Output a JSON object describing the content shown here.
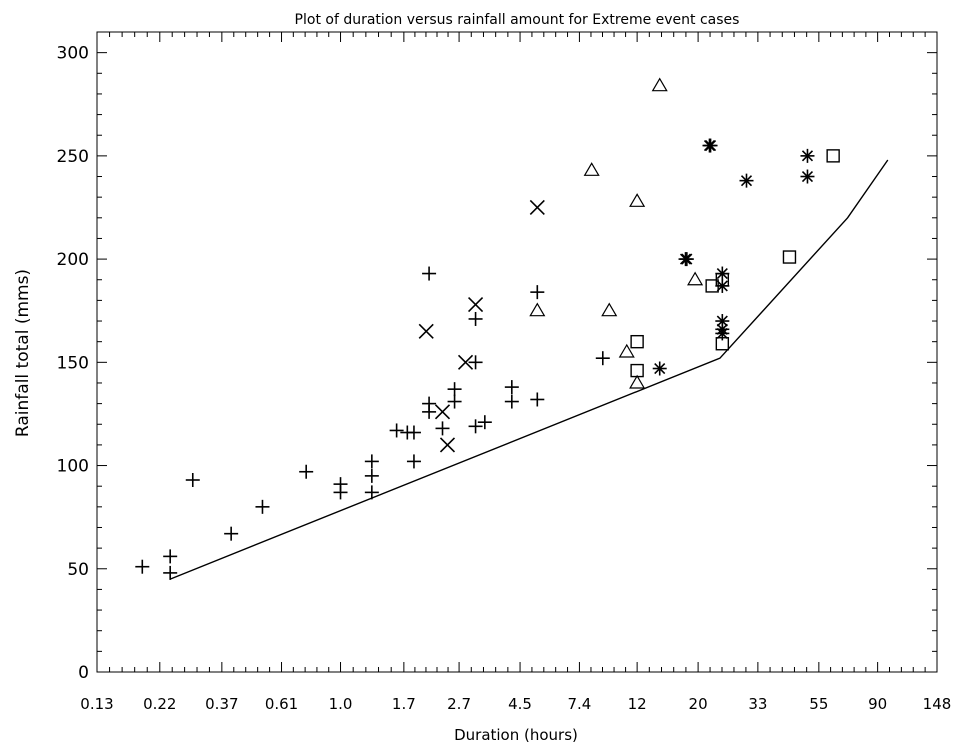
{
  "chart_data": {
    "type": "scatter",
    "title": "Plot of duration versus rainfall amount for Extreme event cases",
    "xlabel": "Duration (hours)",
    "ylabel": "Rainfall total (mms)",
    "x_scale": "log",
    "xlim": [
      0.13,
      148
    ],
    "ylim": [
      0,
      310
    ],
    "x_ticks": [
      0.13,
      0.22,
      0.37,
      0.61,
      1.0,
      1.7,
      2.7,
      4.5,
      7.4,
      12,
      20,
      33,
      55,
      90,
      148
    ],
    "x_tick_labels": [
      "0.13",
      "0.22",
      "0.37",
      "0.61",
      "1.0",
      "1.7",
      "2.7",
      "4.5",
      "7.4",
      "12",
      "20",
      "33",
      "55",
      "90",
      "148"
    ],
    "y_ticks": [
      0,
      50,
      100,
      150,
      200,
      250,
      300
    ],
    "y_tick_labels": [
      "0",
      "50",
      "100",
      "150",
      "200",
      "250",
      "300"
    ],
    "grid": false,
    "series": [
      {
        "marker": "plus",
        "points": [
          [
            0.19,
            51
          ],
          [
            0.24,
            56
          ],
          [
            0.24,
            48
          ],
          [
            0.29,
            93
          ],
          [
            0.4,
            67
          ],
          [
            0.52,
            80
          ],
          [
            0.75,
            97
          ],
          [
            1.0,
            91
          ],
          [
            1.0,
            87
          ],
          [
            1.3,
            102
          ],
          [
            1.3,
            95
          ],
          [
            1.3,
            87
          ],
          [
            1.6,
            117
          ],
          [
            1.75,
            116
          ],
          [
            1.85,
            116
          ],
          [
            1.85,
            102
          ],
          [
            2.1,
            193
          ],
          [
            2.1,
            130
          ],
          [
            2.1,
            126
          ],
          [
            2.35,
            118
          ],
          [
            2.6,
            137
          ],
          [
            2.6,
            131
          ],
          [
            3.1,
            171
          ],
          [
            3.1,
            150
          ],
          [
            3.1,
            119
          ],
          [
            3.35,
            121
          ],
          [
            4.2,
            138
          ],
          [
            4.2,
            131
          ],
          [
            5.2,
            184
          ],
          [
            5.2,
            132
          ],
          [
            9.0,
            152
          ]
        ]
      },
      {
        "marker": "x",
        "points": [
          [
            2.05,
            165
          ],
          [
            2.35,
            126
          ],
          [
            2.45,
            110
          ],
          [
            2.85,
            150
          ],
          [
            3.1,
            178
          ],
          [
            5.2,
            225
          ]
        ]
      },
      {
        "marker": "triangle",
        "points": [
          [
            5.2,
            175
          ],
          [
            8.2,
            243
          ],
          [
            9.5,
            175
          ],
          [
            11.0,
            155
          ],
          [
            12.0,
            228
          ],
          [
            12.0,
            140
          ],
          [
            14.5,
            284
          ],
          [
            19.5,
            190
          ]
        ]
      },
      {
        "marker": "asterisk",
        "points": [
          [
            14.5,
            147
          ],
          [
            18.0,
            200
          ],
          [
            18.2,
            200
          ],
          [
            22.0,
            255
          ],
          [
            22.2,
            255
          ],
          [
            24.5,
            193
          ],
          [
            24.5,
            187
          ],
          [
            24.5,
            170
          ],
          [
            24.5,
            166
          ],
          [
            24.5,
            164
          ],
          [
            30.0,
            238
          ],
          [
            50.0,
            250
          ],
          [
            50.0,
            240
          ]
        ]
      },
      {
        "marker": "square",
        "points": [
          [
            12.0,
            160
          ],
          [
            12.0,
            146
          ],
          [
            22.5,
            187
          ],
          [
            24.5,
            190
          ],
          [
            24.5,
            159
          ],
          [
            43.0,
            201
          ],
          [
            62.0,
            250
          ]
        ]
      },
      {
        "marker": "line",
        "points": [
          [
            0.24,
            45
          ],
          [
            24.0,
            152
          ],
          [
            70.0,
            220
          ],
          [
            98.0,
            248
          ]
        ]
      }
    ]
  }
}
